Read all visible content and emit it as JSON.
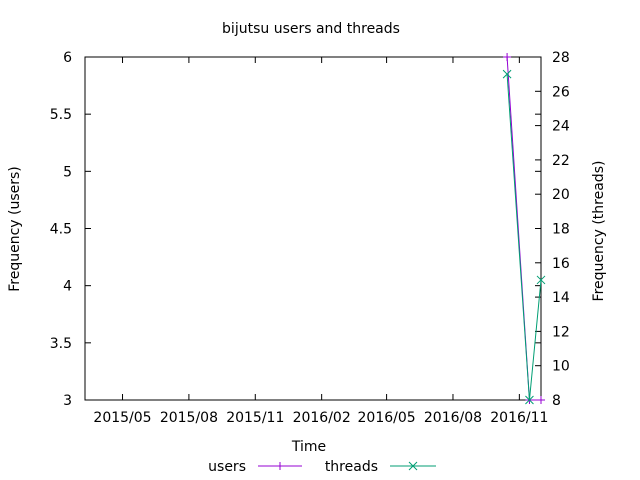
{
  "chart_data": {
    "type": "line",
    "title": "bijutsu users and threads",
    "xlabel": "Time",
    "ylabel": "Frequency (users)",
    "y2label": "Frequency (threads)",
    "x_tick_labels": [
      "2015/05",
      "2015/08",
      "2015/11",
      "2016/02",
      "2016/05",
      "2016/08",
      "2016/11"
    ],
    "y_ticks": [
      "3",
      "3.5",
      "4",
      "4.5",
      "5",
      "5.5",
      "6"
    ],
    "y2_ticks": [
      "8",
      "10",
      "12",
      "14",
      "16",
      "18",
      "20",
      "22",
      "24",
      "26",
      "28"
    ],
    "ylim": [
      3,
      6
    ],
    "y2lim": [
      8,
      28
    ],
    "xlim": [
      "2015-03-10",
      "2016-12-01"
    ],
    "legend_position": "bottom",
    "series": [
      {
        "name": "users",
        "axis": "left",
        "color": "#9400d3",
        "marker": "plus",
        "x": [
          "2016-10-15",
          "2016-11-15",
          "2016-12-01"
        ],
        "y": [
          6,
          3,
          3
        ]
      },
      {
        "name": "threads",
        "axis": "right",
        "color": "#009e73",
        "marker": "cross",
        "x": [
          "2016-10-15",
          "2016-11-15",
          "2016-12-01"
        ],
        "y": [
          27,
          8,
          15
        ]
      }
    ]
  }
}
